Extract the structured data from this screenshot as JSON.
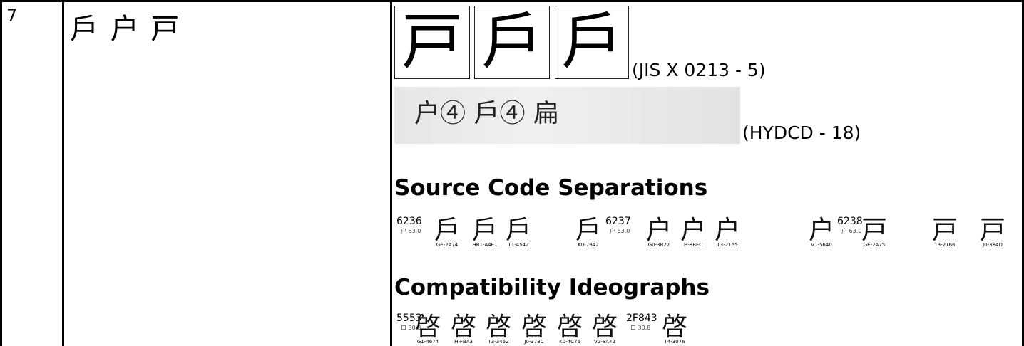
{
  "row": {
    "number": "7",
    "variants": "戶 户 戸",
    "jis_glyphs": [
      "戸",
      "戶",
      "戶"
    ],
    "jis_note": "(JIS X 0213 - 5)",
    "hydcd_glyphs": "户④  戶④  扁",
    "hydcd_note": "(HYDCD - 18)",
    "source_heading": "Source Code Separations",
    "source_groups": [
      {
        "code": "6236",
        "radical": "户 63.0",
        "glyphs": [
          {
            "char": "戶",
            "source": "GE-2A74"
          },
          {
            "char": "戶",
            "source": "HB1-A4E1"
          },
          {
            "char": "戶",
            "source": "T1-4542"
          },
          {
            "char": "戶",
            "source": "K0-7B42"
          }
        ]
      },
      {
        "code": "6237",
        "radical": "户 63.0",
        "glyphs": [
          {
            "char": "户",
            "source": "G0-3B27"
          },
          {
            "char": "户",
            "source": "H-8BFC"
          },
          {
            "char": "户",
            "source": "T3-2165"
          },
          {
            "char": "户",
            "source": "V1-5640"
          }
        ]
      },
      {
        "code": "6238",
        "radical": "户 63.0",
        "glyphs": [
          {
            "char": "戸",
            "source": "GE-2A75"
          },
          {
            "char": "戸",
            "source": "T3-2166"
          },
          {
            "char": "戸",
            "source": "J0-384D"
          }
        ]
      }
    ],
    "compat_heading": "Compatibility Ideographs",
    "compat_groups": [
      {
        "code": "5553",
        "radical": "口 30.8",
        "glyphs": [
          {
            "char": "啓",
            "source": "G1-4674"
          },
          {
            "char": "啓",
            "source": "H-FBA3"
          },
          {
            "char": "啓",
            "source": "T3-3462"
          },
          {
            "char": "啓",
            "source": "J0-373C"
          },
          {
            "char": "啓",
            "source": "K0-4C76"
          },
          {
            "char": "啓",
            "source": "V2-8A72"
          }
        ]
      },
      {
        "code": "2F843",
        "radical": "口 30.8",
        "glyphs": [
          {
            "char": "啓",
            "source": "T4-3076"
          }
        ]
      }
    ]
  }
}
